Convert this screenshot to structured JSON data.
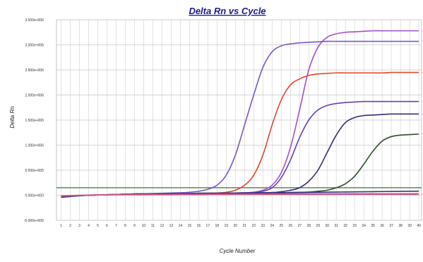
{
  "chart_data": {
    "type": "line",
    "title": "Delta Rn vs Cycle",
    "xlabel": "Cycle Number",
    "ylabel": "Delta Rn",
    "x": [
      1,
      2,
      3,
      4,
      5,
      6,
      7,
      8,
      9,
      10,
      11,
      12,
      13,
      14,
      15,
      16,
      17,
      18,
      19,
      20,
      21,
      22,
      23,
      24,
      25,
      26,
      27,
      28,
      29,
      30,
      31,
      32,
      33,
      34,
      35,
      36,
      37,
      38,
      39,
      40
    ],
    "xtick_labels": [
      "1",
      "2",
      "3",
      "4",
      "5",
      "6",
      "7",
      "8",
      "9",
      "10",
      "11",
      "12",
      "13",
      "14",
      "15",
      "16",
      "17",
      "18",
      "19",
      "20",
      "21",
      "22",
      "23",
      "24",
      "25",
      "26",
      "27",
      "28",
      "29",
      "30",
      "31",
      "32",
      "33",
      "34",
      "35",
      "36",
      "37",
      "38",
      "39",
      "40"
    ],
    "ylim": [
      -500000,
      3500000
    ],
    "yticks": [
      -500000,
      0,
      500000,
      1000000,
      1500000,
      2000000,
      2500000,
      3000000,
      3500000
    ],
    "ytick_labels": [
      "-5.000e+005",
      "0.000e+000",
      "5.000e+005",
      "1.000e+006",
      "1.500e+006",
      "2.000e+006",
      "2.500e+006",
      "3.000e+006",
      "3.500e+006"
    ],
    "grid": true,
    "threshold": {
      "value": 150000,
      "color": "#3a8f3a"
    },
    "series": [
      {
        "values": [
          -40000,
          -20000,
          -10000,
          0,
          5000,
          10000,
          15000,
          20000,
          25000,
          30000,
          35000,
          40000,
          45000,
          50000,
          60000,
          80000,
          120000,
          200000,
          400000,
          800000,
          1400000,
          2000000,
          2550000,
          2860000,
          2980000,
          3020000,
          3040000,
          3050000,
          3060000,
          3070000,
          3070000,
          3070000,
          3070000,
          3070000,
          3070000,
          3070000,
          3070000,
          3070000,
          3070000,
          3070000
        ],
        "color": "#7b55c9"
      },
      {
        "values": [
          -30000,
          -15000,
          -5000,
          0,
          5000,
          10000,
          15000,
          20000,
          25000,
          30000,
          30000,
          30000,
          35000,
          35000,
          35000,
          40000,
          40000,
          45000,
          60000,
          100000,
          200000,
          400000,
          800000,
          1400000,
          1900000,
          2200000,
          2320000,
          2390000,
          2420000,
          2430000,
          2440000,
          2440000,
          2440000,
          2440000,
          2440000,
          2440000,
          2450000,
          2450000,
          2450000,
          2450000
        ],
        "color": "#e8442a"
      },
      {
        "values": [
          -30000,
          -15000,
          -5000,
          0,
          5000,
          10000,
          15000,
          20000,
          25000,
          30000,
          30000,
          30000,
          35000,
          35000,
          35000,
          40000,
          40000,
          40000,
          40000,
          45000,
          50000,
          60000,
          100000,
          200000,
          450000,
          950000,
          1700000,
          2500000,
          2950000,
          3150000,
          3220000,
          3250000,
          3260000,
          3270000,
          3280000,
          3280000,
          3280000,
          3280000,
          3280000,
          3280000
        ],
        "color": "#a24fd0"
      },
      {
        "values": [
          -30000,
          -15000,
          -5000,
          0,
          5000,
          10000,
          15000,
          20000,
          25000,
          30000,
          30000,
          30000,
          35000,
          35000,
          35000,
          40000,
          40000,
          40000,
          40000,
          45000,
          50000,
          60000,
          80000,
          150000,
          350000,
          700000,
          1150000,
          1500000,
          1700000,
          1790000,
          1830000,
          1850000,
          1860000,
          1870000,
          1870000,
          1870000,
          1870000,
          1870000,
          1870000,
          1870000
        ],
        "color": "#6a3fb5"
      },
      {
        "values": [
          -30000,
          -15000,
          -5000,
          0,
          5000,
          10000,
          15000,
          20000,
          25000,
          30000,
          30000,
          30000,
          35000,
          35000,
          35000,
          40000,
          40000,
          40000,
          40000,
          40000,
          45000,
          45000,
          50000,
          55000,
          70000,
          100000,
          150000,
          280000,
          500000,
          850000,
          1200000,
          1450000,
          1550000,
          1590000,
          1600000,
          1610000,
          1620000,
          1620000,
          1620000,
          1620000
        ],
        "color": "#3c2a70"
      },
      {
        "values": [
          -30000,
          -15000,
          -5000,
          0,
          5000,
          10000,
          15000,
          20000,
          25000,
          30000,
          30000,
          30000,
          35000,
          35000,
          35000,
          40000,
          40000,
          40000,
          40000,
          40000,
          45000,
          45000,
          45000,
          50000,
          50000,
          55000,
          60000,
          65000,
          80000,
          100000,
          150000,
          230000,
          380000,
          620000,
          880000,
          1080000,
          1170000,
          1200000,
          1210000,
          1220000
        ],
        "color": "#2e4f2e"
      },
      {
        "values": [
          -40000,
          -25000,
          -10000,
          0,
          5000,
          10000,
          15000,
          18000,
          20000,
          22000,
          24000,
          26000,
          28000,
          30000,
          32000,
          34000,
          36000,
          38000,
          40000,
          42000,
          44000,
          46000,
          48000,
          50000,
          52000,
          54000,
          56000,
          58000,
          60000,
          62000,
          64000,
          66000,
          68000,
          70000,
          72000,
          74000,
          76000,
          78000,
          80000,
          82000
        ],
        "color": "#3b2f8a"
      },
      {
        "values": [
          -20000,
          -10000,
          0,
          5000,
          10000,
          12000,
          14000,
          16000,
          18000,
          20000,
          20000,
          20000,
          22000,
          22000,
          22000,
          24000,
          24000,
          24000,
          26000,
          26000,
          26000,
          28000,
          28000,
          28000,
          30000,
          30000,
          30000,
          30000,
          30000,
          30000,
          30000,
          30000,
          30000,
          30000,
          30000,
          30000,
          30000,
          30000,
          30000,
          30000
        ],
        "color": "#c43a7a"
      },
      {
        "values": [
          -10000,
          -5000,
          0,
          2000,
          4000,
          6000,
          8000,
          10000,
          10000,
          10000,
          12000,
          12000,
          12000,
          14000,
          14000,
          14000,
          16000,
          16000,
          16000,
          18000,
          18000,
          18000,
          18000,
          18000,
          18000,
          18000,
          18000,
          18000,
          18000,
          18000,
          18000,
          18000,
          18000,
          18000,
          18000,
          18000,
          18000,
          18000,
          18000,
          18000
        ],
        "color": "#d05a8a"
      }
    ]
  }
}
